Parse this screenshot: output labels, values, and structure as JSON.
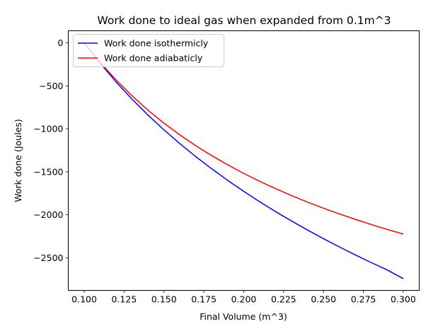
{
  "chart_data": {
    "type": "line",
    "title": "Work done to ideal gas when expanded from 0.1m^3",
    "xlabel": "Final Volume (m^3)",
    "ylabel": "Work done (Joules)",
    "xlim": [
      0.09,
      0.31
    ],
    "ylim": [
      -2880,
      140
    ],
    "xticks": [
      0.1,
      0.125,
      0.15,
      0.175,
      0.2,
      0.225,
      0.25,
      0.275,
      0.3
    ],
    "xtick_labels": [
      "0.100",
      "0.125",
      "0.150",
      "0.175",
      "0.200",
      "0.225",
      "0.250",
      "0.275",
      "0.300"
    ],
    "yticks": [
      0,
      -500,
      -1000,
      -1500,
      -2000,
      -2500
    ],
    "ytick_labels": [
      "0",
      "−500",
      "−1000",
      "−1500",
      "−2000",
      "−2500"
    ],
    "grid": false,
    "legend_position": "top-left",
    "series": [
      {
        "name": "Work done isothermicly",
        "color": "#0000ff",
        "x": [
          0.1,
          0.11,
          0.12,
          0.13,
          0.14,
          0.15,
          0.16,
          0.17,
          0.18,
          0.19,
          0.2,
          0.21,
          0.22,
          0.23,
          0.24,
          0.25,
          0.26,
          0.27,
          0.28,
          0.29,
          0.3
        ],
        "y": [
          0,
          -238,
          -456,
          -656,
          -841,
          -1013,
          -1174,
          -1325,
          -1467,
          -1601,
          -1728,
          -1849,
          -1964,
          -2073,
          -2178,
          -2279,
          -2375,
          -2468,
          -2557,
          -2643,
          -2744
        ]
      },
      {
        "name": "Work done adiabaticly",
        "color": "#ff0000",
        "x": [
          0.1,
          0.11,
          0.12,
          0.13,
          0.14,
          0.15,
          0.16,
          0.17,
          0.18,
          0.19,
          0.2,
          0.21,
          0.22,
          0.23,
          0.24,
          0.25,
          0.26,
          0.27,
          0.28,
          0.29,
          0.3
        ],
        "y": [
          0,
          -228,
          -432,
          -617,
          -784,
          -935,
          -1072,
          -1198,
          -1313,
          -1420,
          -1519,
          -1611,
          -1697,
          -1777,
          -1853,
          -1924,
          -1991,
          -2054,
          -2114,
          -2171,
          -2225
        ]
      }
    ]
  }
}
